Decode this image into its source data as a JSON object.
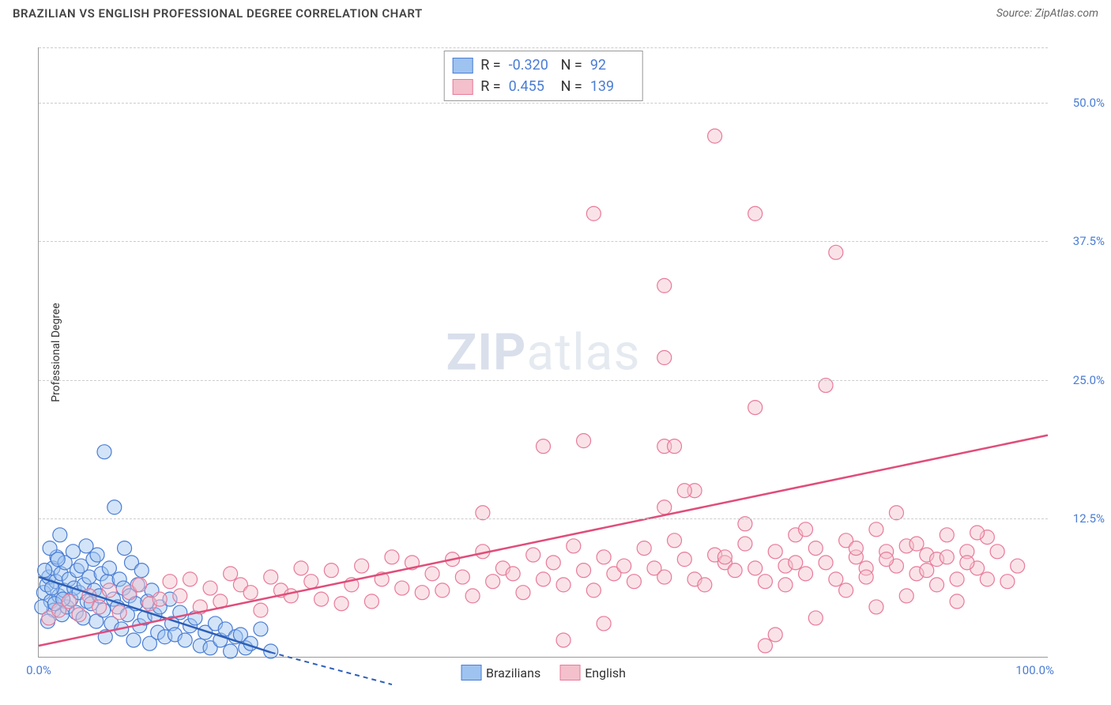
{
  "header": {
    "title": "BRAZILIAN VS ENGLISH PROFESSIONAL DEGREE CORRELATION CHART",
    "source_label": "Source: ",
    "source_name": "ZipAtlas.com"
  },
  "watermark": {
    "zip": "ZIP",
    "atlas": "atlas"
  },
  "chart": {
    "type": "scatter",
    "ylabel": "Professional Degree",
    "xlim": [
      0,
      100
    ],
    "ylim": [
      0,
      55
    ],
    "grid_color": "#cccccc",
    "axis_color": "#999999",
    "background_color": "#ffffff",
    "yticks": [
      {
        "value": 12.5,
        "label": "12.5%"
      },
      {
        "value": 25.0,
        "label": "25.0%"
      },
      {
        "value": 37.5,
        "label": "37.5%"
      },
      {
        "value": 50.0,
        "label": "50.0%"
      }
    ],
    "xticks": [
      {
        "value": 0,
        "label": "0.0%"
      },
      {
        "value": 100,
        "label": "100.0%"
      }
    ],
    "marker_radius": 9,
    "marker_opacity": 0.45,
    "series": [
      {
        "name": "Brazilians",
        "fill_color": "#9ec3f0",
        "stroke_color": "#4a7dd4",
        "line_color": "#2d5fb8",
        "R": "-0.320",
        "N": "92",
        "trend": {
          "x1": 0,
          "y1": 7.2,
          "x2": 23,
          "y2": 0.4,
          "dash_after_x": 23,
          "dash_x2": 35,
          "dash_y2": -2.5
        },
        "points": [
          [
            0.5,
            5.8
          ],
          [
            0.8,
            6.5
          ],
          [
            1.0,
            7.2
          ],
          [
            1.2,
            5.0
          ],
          [
            1.4,
            8.0
          ],
          [
            1.5,
            4.2
          ],
          [
            1.7,
            6.8
          ],
          [
            1.8,
            9.0
          ],
          [
            2.0,
            5.5
          ],
          [
            2.2,
            7.5
          ],
          [
            2.3,
            3.8
          ],
          [
            2.5,
            6.0
          ],
          [
            2.6,
            8.5
          ],
          [
            2.8,
            4.5
          ],
          [
            3.0,
            7.0
          ],
          [
            3.2,
            5.2
          ],
          [
            3.4,
            9.5
          ],
          [
            3.5,
            6.2
          ],
          [
            3.7,
            4.0
          ],
          [
            3.8,
            7.8
          ],
          [
            4.0,
            5.8
          ],
          [
            4.2,
            8.2
          ],
          [
            4.4,
            3.5
          ],
          [
            4.5,
            6.5
          ],
          [
            4.7,
            10.0
          ],
          [
            4.8,
            5.0
          ],
          [
            5.0,
            7.2
          ],
          [
            5.2,
            4.8
          ],
          [
            5.4,
            8.8
          ],
          [
            5.5,
            6.0
          ],
          [
            5.7,
            3.2
          ],
          [
            5.8,
            9.2
          ],
          [
            6.0,
            5.5
          ],
          [
            6.2,
            7.5
          ],
          [
            6.4,
            4.2
          ],
          [
            6.6,
            1.8
          ],
          [
            6.8,
            6.8
          ],
          [
            7.0,
            8.0
          ],
          [
            7.2,
            3.0
          ],
          [
            7.4,
            5.2
          ],
          [
            7.5,
            13.5
          ],
          [
            7.8,
            4.5
          ],
          [
            8.0,
            7.0
          ],
          [
            8.2,
            2.5
          ],
          [
            8.4,
            6.2
          ],
          [
            8.5,
            9.8
          ],
          [
            8.8,
            3.8
          ],
          [
            9.0,
            5.5
          ],
          [
            9.2,
            8.5
          ],
          [
            9.4,
            1.5
          ],
          [
            9.6,
            4.8
          ],
          [
            9.8,
            6.5
          ],
          [
            10.0,
            2.8
          ],
          [
            10.2,
            7.8
          ],
          [
            10.5,
            3.5
          ],
          [
            10.8,
            5.0
          ],
          [
            6.5,
            18.5
          ],
          [
            11.0,
            1.2
          ],
          [
            11.2,
            6.0
          ],
          [
            11.5,
            3.8
          ],
          [
            11.8,
            2.2
          ],
          [
            12.0,
            4.5
          ],
          [
            12.5,
            1.8
          ],
          [
            13.0,
            5.2
          ],
          [
            13.2,
            3.0
          ],
          [
            13.5,
            2.0
          ],
          [
            14.0,
            4.0
          ],
          [
            14.5,
            1.5
          ],
          [
            15.0,
            2.8
          ],
          [
            15.5,
            3.5
          ],
          [
            16.0,
            1.0
          ],
          [
            16.5,
            2.2
          ],
          [
            17.0,
            0.8
          ],
          [
            17.5,
            3.0
          ],
          [
            18.0,
            1.5
          ],
          [
            18.5,
            2.5
          ],
          [
            19.0,
            0.5
          ],
          [
            19.5,
            1.8
          ],
          [
            20.0,
            2.0
          ],
          [
            20.5,
            0.8
          ],
          [
            21.0,
            1.2
          ],
          [
            22.0,
            2.5
          ],
          [
            23.0,
            0.5
          ],
          [
            0.3,
            4.5
          ],
          [
            0.6,
            7.8
          ],
          [
            0.9,
            3.2
          ],
          [
            1.1,
            9.8
          ],
          [
            1.3,
            6.2
          ],
          [
            1.6,
            4.8
          ],
          [
            1.9,
            8.8
          ],
          [
            2.1,
            11.0
          ],
          [
            2.4,
            5.2
          ]
        ]
      },
      {
        "name": "English",
        "fill_color": "#f4c0cc",
        "stroke_color": "#e87a9a",
        "line_color": "#e04d7a",
        "R": "0.455",
        "N": "139",
        "trend": {
          "x1": 0,
          "y1": 1.0,
          "x2": 100,
          "y2": 20.0
        },
        "points": [
          [
            1,
            3.5
          ],
          [
            2,
            4.2
          ],
          [
            3,
            5.0
          ],
          [
            4,
            3.8
          ],
          [
            5,
            5.5
          ],
          [
            6,
            4.5
          ],
          [
            7,
            6.0
          ],
          [
            8,
            4.0
          ],
          [
            9,
            5.8
          ],
          [
            10,
            6.5
          ],
          [
            11,
            4.8
          ],
          [
            12,
            5.2
          ],
          [
            13,
            6.8
          ],
          [
            14,
            5.5
          ],
          [
            15,
            7.0
          ],
          [
            16,
            4.5
          ],
          [
            17,
            6.2
          ],
          [
            18,
            5.0
          ],
          [
            19,
            7.5
          ],
          [
            20,
            6.5
          ],
          [
            21,
            5.8
          ],
          [
            22,
            4.2
          ],
          [
            23,
            7.2
          ],
          [
            24,
            6.0
          ],
          [
            25,
            5.5
          ],
          [
            26,
            8.0
          ],
          [
            27,
            6.8
          ],
          [
            28,
            5.2
          ],
          [
            29,
            7.8
          ],
          [
            30,
            4.8
          ],
          [
            31,
            6.5
          ],
          [
            32,
            8.2
          ],
          [
            33,
            5.0
          ],
          [
            34,
            7.0
          ],
          [
            35,
            9.0
          ],
          [
            36,
            6.2
          ],
          [
            37,
            8.5
          ],
          [
            38,
            5.8
          ],
          [
            39,
            7.5
          ],
          [
            40,
            6.0
          ],
          [
            41,
            8.8
          ],
          [
            42,
            7.2
          ],
          [
            43,
            5.5
          ],
          [
            44,
            9.5
          ],
          [
            45,
            6.8
          ],
          [
            46,
            8.0
          ],
          [
            44,
            13.0
          ],
          [
            47,
            7.5
          ],
          [
            48,
            5.8
          ],
          [
            49,
            9.2
          ],
          [
            50,
            7.0
          ],
          [
            51,
            8.5
          ],
          [
            52,
            6.5
          ],
          [
            53,
            10.0
          ],
          [
            54,
            7.8
          ],
          [
            55,
            6.0
          ],
          [
            56,
            9.0
          ],
          [
            57,
            7.5
          ],
          [
            58,
            8.2
          ],
          [
            59,
            6.8
          ],
          [
            60,
            9.8
          ],
          [
            61,
            8.0
          ],
          [
            62,
            7.2
          ],
          [
            63,
            10.5
          ],
          [
            64,
            8.8
          ],
          [
            65,
            7.0
          ],
          [
            65,
            15.0
          ],
          [
            66,
            6.5
          ],
          [
            67,
            9.2
          ],
          [
            68,
            8.5
          ],
          [
            69,
            7.8
          ],
          [
            50,
            19.0
          ],
          [
            70,
            10.2
          ],
          [
            71,
            8.0
          ],
          [
            72,
            6.8
          ],
          [
            73,
            9.5
          ],
          [
            74,
            8.2
          ],
          [
            75,
            11.0
          ],
          [
            52,
            1.5
          ],
          [
            54,
            19.5
          ],
          [
            52,
            52.0
          ],
          [
            55,
            40.0
          ],
          [
            76,
            7.5
          ],
          [
            77,
            9.8
          ],
          [
            78,
            8.5
          ],
          [
            79,
            7.0
          ],
          [
            80,
            10.5
          ],
          [
            81,
            9.0
          ],
          [
            56,
            3.0
          ],
          [
            82,
            8.0
          ],
          [
            83,
            11.5
          ],
          [
            84,
            9.5
          ],
          [
            62,
            13.5
          ],
          [
            62,
            19.0
          ],
          [
            62,
            33.5
          ],
          [
            85,
            8.2
          ],
          [
            86,
            10.0
          ],
          [
            87,
            7.5
          ],
          [
            62,
            27.0
          ],
          [
            88,
            9.2
          ],
          [
            89,
            8.8
          ],
          [
            90,
            11.0
          ],
          [
            91,
            7.0
          ],
          [
            63,
            19.0
          ],
          [
            92,
            9.5
          ],
          [
            93,
            8.0
          ],
          [
            64,
            15.0
          ],
          [
            94,
            10.8
          ],
          [
            67,
            47.0
          ],
          [
            68,
            9.0
          ],
          [
            70,
            12.0
          ],
          [
            71,
            22.5
          ],
          [
            71,
            40.0
          ],
          [
            72,
            1.0
          ],
          [
            73,
            2.0
          ],
          [
            74,
            6.5
          ],
          [
            75,
            8.5
          ],
          [
            76,
            11.5
          ],
          [
            77,
            3.5
          ],
          [
            78,
            24.5
          ],
          [
            79,
            36.5
          ],
          [
            80,
            6.0
          ],
          [
            81,
            9.8
          ],
          [
            82,
            7.2
          ],
          [
            83,
            4.5
          ],
          [
            84,
            8.8
          ],
          [
            85,
            13.0
          ],
          [
            86,
            5.5
          ],
          [
            87,
            10.2
          ],
          [
            88,
            7.8
          ],
          [
            89,
            6.5
          ],
          [
            90,
            9.0
          ],
          [
            91,
            5.0
          ],
          [
            92,
            8.5
          ],
          [
            93,
            11.2
          ],
          [
            94,
            7.0
          ],
          [
            95,
            9.5
          ],
          [
            96,
            6.8
          ],
          [
            97,
            8.2
          ]
        ]
      }
    ]
  },
  "legend_labels": {
    "R_prefix": "R = ",
    "N_prefix": "N = "
  },
  "bottom_legend": [
    {
      "swatch_fill": "#9ec3f0",
      "swatch_stroke": "#4a7dd4",
      "label": "Brazilians"
    },
    {
      "swatch_fill": "#f4c0cc",
      "swatch_stroke": "#e87a9a",
      "label": "English"
    }
  ]
}
